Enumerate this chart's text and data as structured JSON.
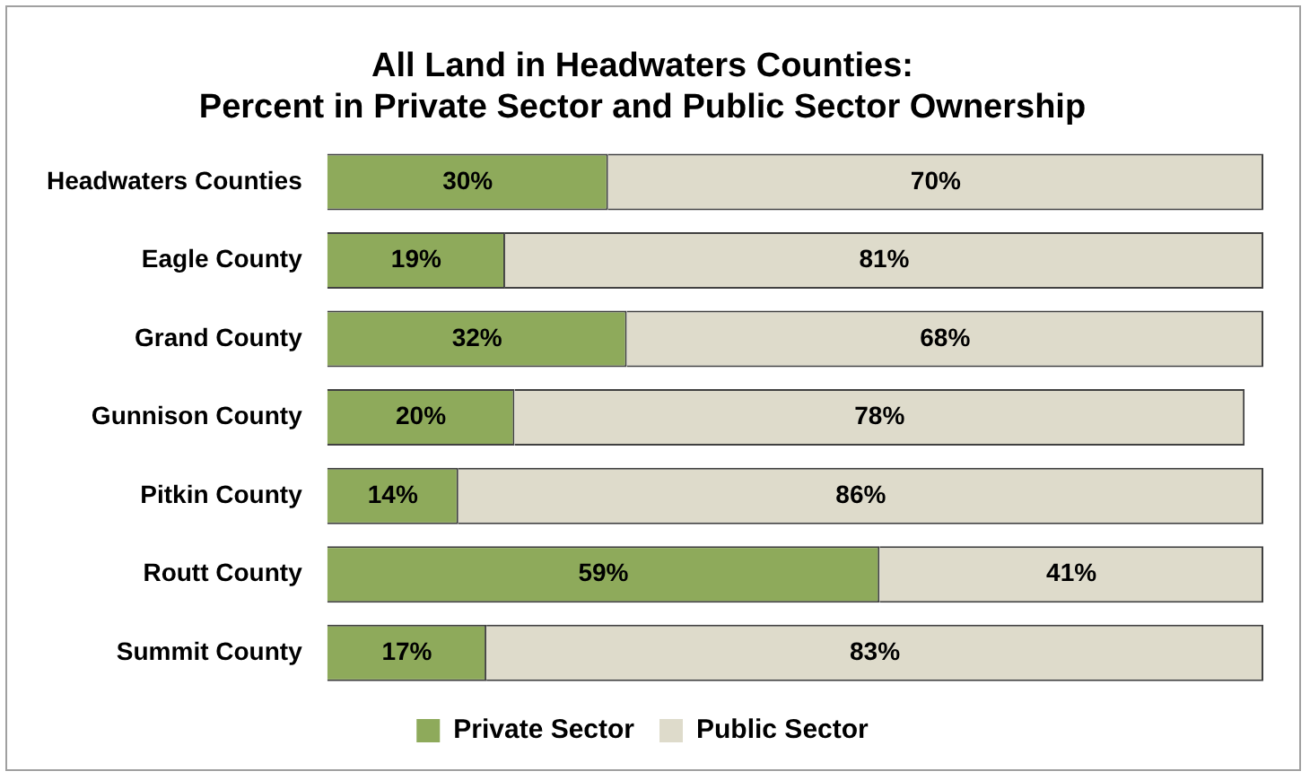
{
  "chart_data": {
    "type": "bar",
    "orientation": "horizontal",
    "stacked": true,
    "title": "All Land in Headwaters Counties:\nPercent in Private Sector and Public Sector Ownership",
    "categories": [
      "Headwaters Counties",
      "Eagle County",
      "Grand County",
      "Gunnison County",
      "Pitkin County",
      "Routt County",
      "Summit County"
    ],
    "series": [
      {
        "name": "Private Sector",
        "color": "#8eaa5b",
        "values": [
          30,
          19,
          32,
          20,
          14,
          59,
          17
        ],
        "value_labels": [
          "30%",
          "19%",
          "32%",
          "20%",
          "14%",
          "59%",
          "17%"
        ]
      },
      {
        "name": "Public Sector",
        "color": "#dedbcb",
        "values": [
          70,
          81,
          68,
          78,
          86,
          41,
          83
        ],
        "value_labels": [
          "70%",
          "81%",
          "68%",
          "78%",
          "86%",
          "41%",
          "83%"
        ]
      }
    ],
    "tick_labels": "y",
    "grid": false,
    "legend": "bottom"
  }
}
